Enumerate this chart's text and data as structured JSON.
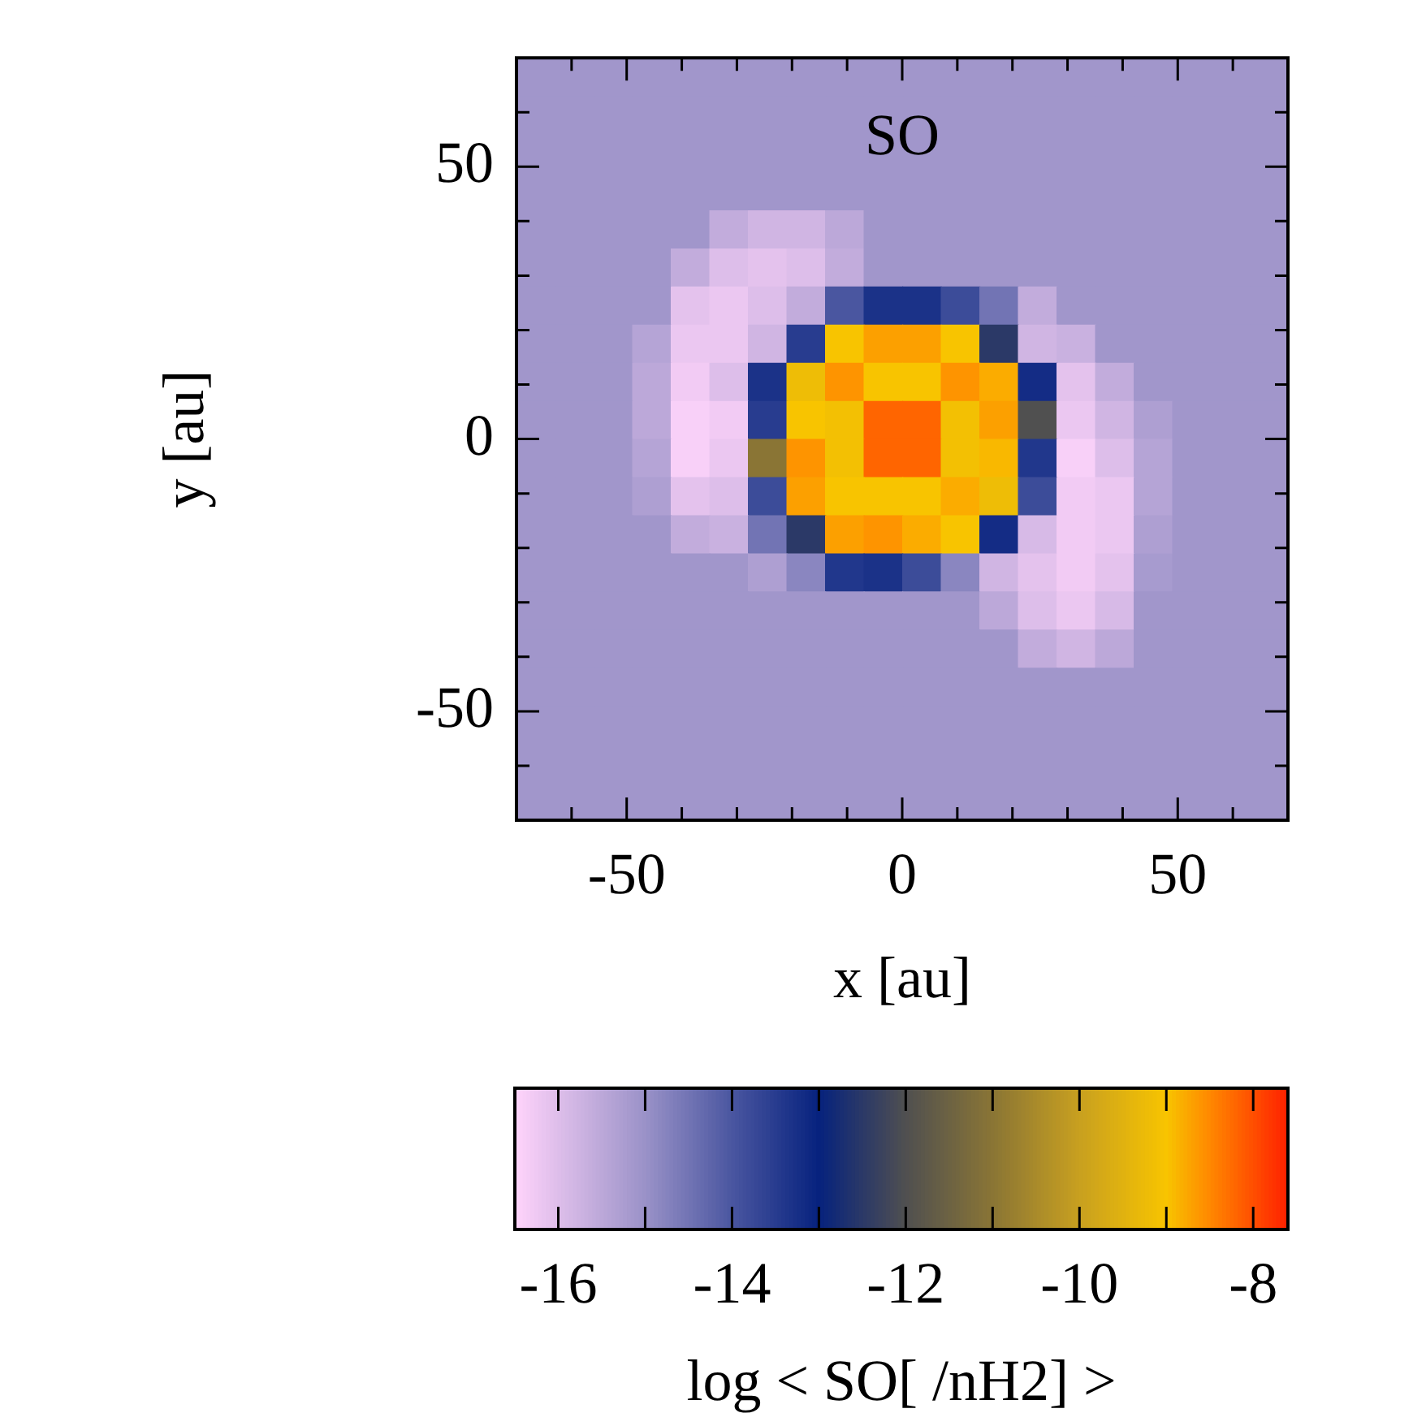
{
  "chart_data": {
    "type": "heatmap",
    "title": "SO",
    "xlabel": "x [au]",
    "ylabel": "y [au]",
    "clabel": "log < SO[ /nH2] >",
    "x": [
      -66.5,
      -59.5,
      -52.5,
      -45.5,
      -38.5,
      -31.5,
      -24.5,
      -17.5,
      -10.5,
      -3.5,
      3.5,
      10.5,
      17.5,
      24.5,
      31.5,
      38.5,
      45.5,
      52.5,
      59.5,
      66.5
    ],
    "y": [
      66.5,
      59.5,
      52.5,
      45.5,
      38.5,
      31.5,
      24.5,
      17.5,
      10.5,
      3.5,
      -3.5,
      -10.5,
      -17.5,
      -24.5,
      -31.5,
      -38.5,
      -45.5,
      -52.5,
      -59.5,
      -66.5
    ],
    "xlim": [
      -70,
      70
    ],
    "ylim": [
      -70,
      70
    ],
    "xticks": [
      {
        "value": -60,
        "label": null
      },
      -50,
      {
        "value": -40,
        "label": null
      },
      {
        "value": -30,
        "label": null
      },
      {
        "value": -20,
        "label": null
      },
      {
        "value": -10,
        "label": null
      },
      0,
      {
        "value": 10,
        "label": null
      },
      {
        "value": 20,
        "label": null
      },
      {
        "value": 30,
        "label": null
      },
      {
        "value": 40,
        "label": null
      },
      50,
      {
        "value": 60,
        "label": null
      }
    ],
    "yticks": [
      {
        "value": -60,
        "label": null
      },
      -50,
      {
        "value": -40,
        "label": null
      },
      {
        "value": -30,
        "label": null
      },
      {
        "value": -20,
        "label": null
      },
      {
        "value": -10,
        "label": null
      },
      0,
      {
        "value": 10,
        "label": null
      },
      {
        "value": 20,
        "label": null
      },
      {
        "value": 30,
        "label": null
      },
      {
        "value": 40,
        "label": null
      },
      50,
      {
        "value": 60,
        "label": null
      }
    ],
    "clim": [
      -16.5,
      -7.6
    ],
    "cticks": [
      -16,
      {
        "value": -15,
        "label": null
      },
      -14,
      {
        "value": -13,
        "label": null
      },
      -12,
      {
        "value": -11,
        "label": null
      },
      -10,
      {
        "value": -9,
        "label": null
      },
      -8
    ],
    "grid": false,
    "cells": [
      [
        -15.1,
        -15.1,
        -15.1,
        -15.1,
        -15.1,
        -15.1,
        -15.1,
        -15.1,
        -15.1,
        -15.1,
        -15.1,
        -15.1,
        -15.1,
        -15.1,
        -15.1,
        -15.1,
        -15.1,
        -15.1,
        -15.1,
        -15.1
      ],
      [
        -15.1,
        -15.1,
        -15.1,
        -15.1,
        -15.1,
        -15.1,
        -15.1,
        -15.1,
        -15.1,
        -15.1,
        -15.1,
        -15.1,
        -15.1,
        -15.1,
        -15.1,
        -15.1,
        -15.1,
        -15.1,
        -15.1,
        -15.1
      ],
      [
        -15.1,
        -15.1,
        -15.1,
        -15.1,
        -15.1,
        -15.1,
        -15.1,
        -15.1,
        -15.1,
        -15.1,
        -15.1,
        -15.1,
        -15.1,
        -15.1,
        -15.1,
        -15.1,
        -15.1,
        -15.1,
        -15.1,
        -15.1
      ],
      [
        -15.1,
        -15.1,
        -15.1,
        -15.1,
        -15.1,
        -15.1,
        -15.1,
        -15.1,
        -15.1,
        -15.1,
        -15.1,
        -15.1,
        -15.1,
        -15.1,
        -15.1,
        -15.1,
        -15.1,
        -15.1,
        -15.1,
        -15.1
      ],
      [
        -15.1,
        -15.1,
        -15.1,
        -15.1,
        -15.1,
        -15.6,
        -15.8,
        -15.8,
        -15.5,
        -15.1,
        -15.1,
        -15.1,
        -15.1,
        -15.1,
        -15.1,
        -15.1,
        -15.1,
        -15.1,
        -15.1,
        -15.1
      ],
      [
        -15.1,
        -15.1,
        -15.1,
        -15.1,
        -15.6,
        -16.0,
        -16.1,
        -16.0,
        -15.6,
        -15.1,
        -15.1,
        -15.1,
        -15.1,
        -15.1,
        -15.1,
        -15.1,
        -15.1,
        -15.1,
        -15.1,
        -15.1
      ],
      [
        -15.1,
        -15.1,
        -15.1,
        -15.1,
        -16.1,
        -16.2,
        -16.0,
        -15.6,
        -14.0,
        -13.3,
        -13.3,
        -13.8,
        -14.5,
        -15.6,
        -15.1,
        -15.1,
        -15.1,
        -15.1,
        -15.1,
        -15.1
      ],
      [
        -15.1,
        -15.1,
        -15.1,
        -15.4,
        -16.2,
        -16.2,
        -15.8,
        -13.5,
        -9.0,
        -8.7,
        -8.7,
        -9.0,
        -12.5,
        -15.8,
        -15.7,
        -15.1,
        -15.1,
        -15.1,
        -15.1,
        -15.1
      ],
      [
        -15.1,
        -15.1,
        -15.1,
        -15.5,
        -16.3,
        -16.0,
        -13.3,
        -9.2,
        -8.6,
        -9.0,
        -9.0,
        -8.6,
        -8.8,
        -13.2,
        -16.1,
        -15.6,
        -15.1,
        -15.1,
        -15.1,
        -15.1
      ],
      [
        -15.1,
        -15.1,
        -15.1,
        -15.5,
        -16.4,
        -16.3,
        -13.5,
        -9.0,
        -9.1,
        -8.2,
        -8.2,
        -9.1,
        -8.7,
        -12.0,
        -16.2,
        -15.8,
        -15.3,
        -15.1,
        -15.1,
        -15.1
      ],
      [
        -15.1,
        -15.1,
        -15.1,
        -15.4,
        -16.4,
        -16.2,
        -11.0,
        -8.6,
        -9.1,
        -8.2,
        -8.2,
        -9.1,
        -8.9,
        -13.4,
        -16.4,
        -16.0,
        -15.4,
        -15.1,
        -15.1,
        -15.1
      ],
      [
        -15.1,
        -15.1,
        -15.1,
        -15.3,
        -16.1,
        -16.0,
        -13.8,
        -8.7,
        -9.0,
        -9.0,
        -9.0,
        -8.8,
        -9.2,
        -13.8,
        -16.3,
        -16.2,
        -15.4,
        -15.1,
        -15.1,
        -15.1
      ],
      [
        -15.1,
        -15.1,
        -15.1,
        -15.1,
        -15.6,
        -15.7,
        -14.5,
        -12.5,
        -8.7,
        -8.6,
        -8.8,
        -9.0,
        -13.2,
        -15.9,
        -16.3,
        -16.2,
        -15.3,
        -15.1,
        -15.1,
        -15.1
      ],
      [
        -15.1,
        -15.1,
        -15.1,
        -15.1,
        -15.1,
        -15.1,
        -15.3,
        -14.8,
        -13.4,
        -13.3,
        -13.8,
        -14.8,
        -15.8,
        -16.1,
        -16.3,
        -16.1,
        -15.2,
        -15.1,
        -15.1,
        -15.1
      ],
      [
        -15.1,
        -15.1,
        -15.1,
        -15.1,
        -15.1,
        -15.1,
        -15.1,
        -15.1,
        -15.1,
        -15.1,
        -15.1,
        -15.1,
        -15.5,
        -16.0,
        -16.2,
        -15.9,
        -15.1,
        -15.1,
        -15.1,
        -15.1
      ],
      [
        -15.1,
        -15.1,
        -15.1,
        -15.1,
        -15.1,
        -15.1,
        -15.1,
        -15.1,
        -15.1,
        -15.1,
        -15.1,
        -15.1,
        -15.1,
        -15.6,
        -15.8,
        -15.5,
        -15.1,
        -15.1,
        -15.1,
        -15.1
      ],
      [
        -15.1,
        -15.1,
        -15.1,
        -15.1,
        -15.1,
        -15.1,
        -15.1,
        -15.1,
        -15.1,
        -15.1,
        -15.1,
        -15.1,
        -15.1,
        -15.1,
        -15.1,
        -15.1,
        -15.1,
        -15.1,
        -15.1,
        -15.1
      ],
      [
        -15.1,
        -15.1,
        -15.1,
        -15.1,
        -15.1,
        -15.1,
        -15.1,
        -15.1,
        -15.1,
        -15.1,
        -15.1,
        -15.1,
        -15.1,
        -15.1,
        -15.1,
        -15.1,
        -15.1,
        -15.1,
        -15.1,
        -15.1
      ],
      [
        -15.1,
        -15.1,
        -15.1,
        -15.1,
        -15.1,
        -15.1,
        -15.1,
        -15.1,
        -15.1,
        -15.1,
        -15.1,
        -15.1,
        -15.1,
        -15.1,
        -15.1,
        -15.1,
        -15.1,
        -15.1,
        -15.1,
        -15.1
      ],
      [
        -15.1,
        -15.1,
        -15.1,
        -15.1,
        -15.1,
        -15.1,
        -15.1,
        -15.1,
        -15.1,
        -15.1,
        -15.1,
        -15.1,
        -15.1,
        -15.1,
        -15.1,
        -15.1,
        -15.1,
        -15.1,
        -15.1,
        -15.1
      ]
    ]
  }
}
